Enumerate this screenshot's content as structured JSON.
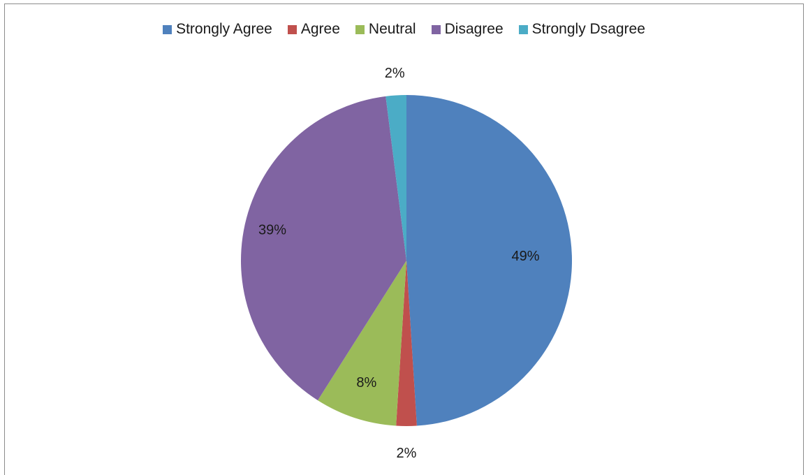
{
  "chart_data": {
    "type": "pie",
    "title": "",
    "legend_position": "top",
    "categories": [
      "Strongly Agree",
      "Agree",
      "Neutral",
      "Disagree",
      "Strongly Dsagree"
    ],
    "values": [
      49,
      2,
      8,
      39,
      2
    ],
    "labels": [
      "49%",
      "2%",
      "8%",
      "39%",
      "2%"
    ],
    "colors": [
      "#4f81bd",
      "#c0504d",
      "#9bbb59",
      "#8064a2",
      "#4bacc6"
    ]
  }
}
